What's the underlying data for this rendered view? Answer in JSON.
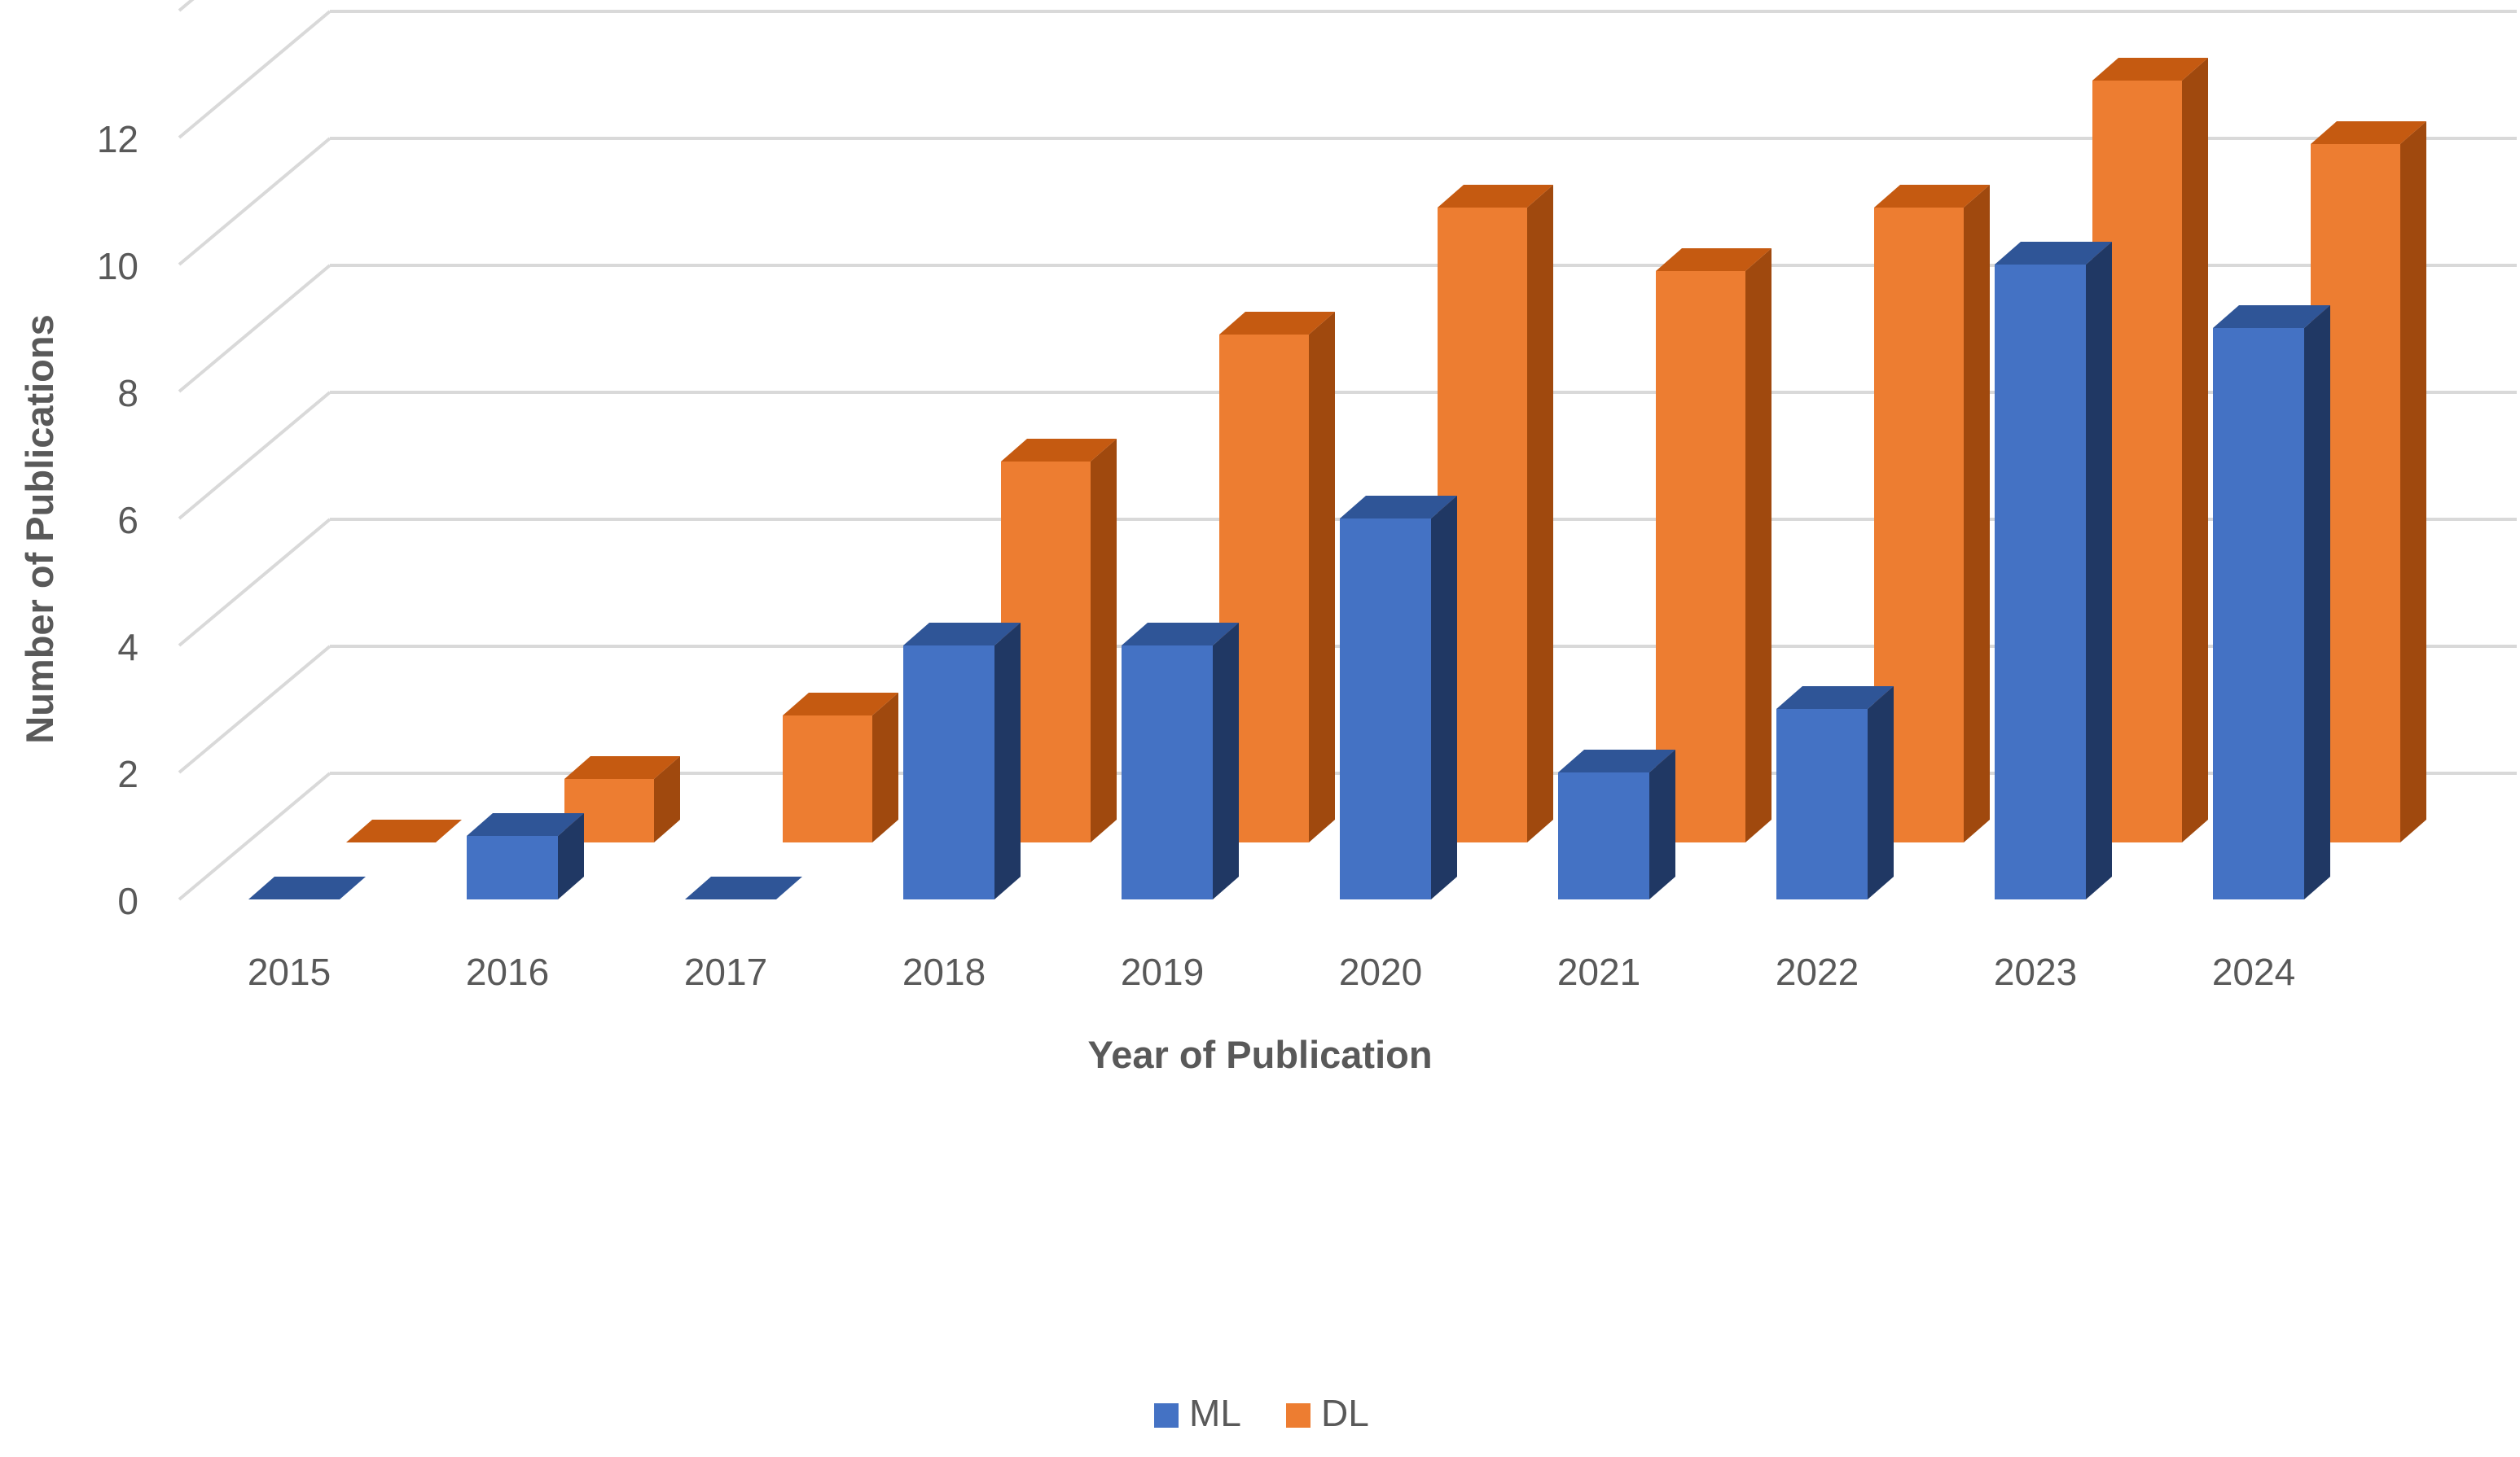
{
  "chart_data": {
    "type": "bar",
    "variant": "3d-column",
    "title": "",
    "xlabel": "Year of Publication",
    "ylabel": "Number of Publications",
    "categories": [
      "2015",
      "2016",
      "2017",
      "2018",
      "2019",
      "2020",
      "2021",
      "2022",
      "2023",
      "2024"
    ],
    "series": [
      {
        "name": "ML",
        "values": [
          0,
          1,
          0,
          4,
          4,
          6,
          2,
          3,
          10,
          9
        ]
      },
      {
        "name": "DL",
        "values": [
          0,
          1,
          2,
          6,
          8,
          10,
          9,
          10,
          12,
          11
        ]
      }
    ],
    "ylim": [
      0,
      12
    ],
    "yticks": [
      "0",
      "2",
      "4",
      "6",
      "8",
      "10",
      "12"
    ],
    "grid": true,
    "legend_position": "bottom",
    "colors": {
      "ML": {
        "front": "#4472C4",
        "top": "#2F5597",
        "side": "#203864"
      },
      "DL": {
        "front": "#ED7D31",
        "top": "#C55A11",
        "side": "#A0490E"
      },
      "grid": "#D9D9D9",
      "text": "#595959"
    }
  }
}
